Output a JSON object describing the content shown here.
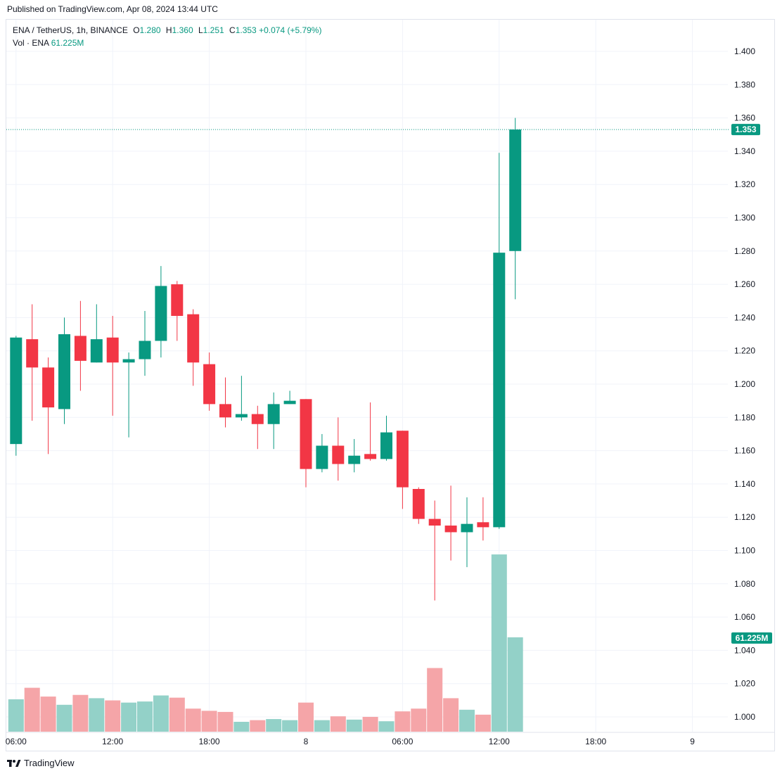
{
  "header": {
    "published": "Published on TradingView.com, Apr 08, 2024 13:44 UTC"
  },
  "legend": {
    "symbol": "ENA / TetherUS, 1h, BINANCE",
    "o_label": "O",
    "o": "1.280",
    "h_label": "H",
    "h": "1.360",
    "l_label": "L",
    "l": "1.251",
    "c_label": "C",
    "c": "1.353",
    "change": "+0.074 (+5.79%)",
    "vol_label": "Vol · ENA",
    "vol": "61.225M"
  },
  "footer": {
    "brand": "TradingView"
  },
  "colors": {
    "up": "#089981",
    "down": "#f23645",
    "up_vol": "#93d1c8",
    "down_vol": "#f5a5a8",
    "grid": "#f0f3fa",
    "text": "#131722"
  },
  "chart_data": {
    "type": "candlestick",
    "interval": "1h",
    "ylim": [
      0.99,
      1.415
    ],
    "y_ticks": [
      "1.400",
      "1.380",
      "1.360",
      "1.340",
      "1.320",
      "1.300",
      "1.280",
      "1.260",
      "1.240",
      "1.220",
      "1.200",
      "1.180",
      "1.160",
      "1.140",
      "1.120",
      "1.100",
      "1.080",
      "1.060",
      "1.040",
      "1.020",
      "1.000"
    ],
    "x_ticks": [
      {
        "label": "06:00",
        "bar": 0
      },
      {
        "label": "12:00",
        "bar": 6
      },
      {
        "label": "18:00",
        "bar": 12
      },
      {
        "label": "8",
        "bar": 18
      },
      {
        "label": "06:00",
        "bar": 24
      },
      {
        "label": "12:00",
        "bar": 30
      },
      {
        "label": "18:00",
        "bar": 36
      },
      {
        "label": "9",
        "bar": 42
      }
    ],
    "last_price": "1.353",
    "last_volume": "61.225M",
    "candles": [
      {
        "o": 1.164,
        "h": 1.229,
        "l": 1.157,
        "c": 1.228,
        "v": 0.59
      },
      {
        "o": 1.227,
        "h": 1.248,
        "l": 1.178,
        "c": 1.21,
        "v": 0.8
      },
      {
        "o": 1.21,
        "h": 1.216,
        "l": 1.158,
        "c": 1.186,
        "v": 0.64
      },
      {
        "o": 1.185,
        "h": 1.24,
        "l": 1.176,
        "c": 1.23,
        "v": 0.49
      },
      {
        "o": 1.229,
        "h": 1.25,
        "l": 1.196,
        "c": 1.214,
        "v": 0.67
      },
      {
        "o": 1.213,
        "h": 1.248,
        "l": 1.213,
        "c": 1.227,
        "v": 0.61
      },
      {
        "o": 1.228,
        "h": 1.241,
        "l": 1.181,
        "c": 1.213,
        "v": 0.57
      },
      {
        "o": 1.213,
        "h": 1.219,
        "l": 1.168,
        "c": 1.215,
        "v": 0.53
      },
      {
        "o": 1.215,
        "h": 1.244,
        "l": 1.205,
        "c": 1.226,
        "v": 0.55
      },
      {
        "o": 1.226,
        "h": 1.271,
        "l": 1.216,
        "c": 1.259,
        "v": 0.66
      },
      {
        "o": 1.26,
        "h": 1.262,
        "l": 1.226,
        "c": 1.241,
        "v": 0.62
      },
      {
        "o": 1.242,
        "h": 1.245,
        "l": 1.199,
        "c": 1.213,
        "v": 0.42
      },
      {
        "o": 1.212,
        "h": 1.219,
        "l": 1.184,
        "c": 1.188,
        "v": 0.38
      },
      {
        "o": 1.188,
        "h": 1.204,
        "l": 1.174,
        "c": 1.18,
        "v": 0.36
      },
      {
        "o": 1.18,
        "h": 1.205,
        "l": 1.178,
        "c": 1.182,
        "v": 0.18
      },
      {
        "o": 1.182,
        "h": 1.187,
        "l": 1.161,
        "c": 1.176,
        "v": 0.21
      },
      {
        "o": 1.176,
        "h": 1.195,
        "l": 1.161,
        "c": 1.188,
        "v": 0.23
      },
      {
        "o": 1.188,
        "h": 1.196,
        "l": 1.188,
        "c": 1.19,
        "v": 0.21
      },
      {
        "o": 1.191,
        "h": 1.191,
        "l": 1.138,
        "c": 1.149,
        "v": 0.53
      },
      {
        "o": 1.149,
        "h": 1.17,
        "l": 1.147,
        "c": 1.163,
        "v": 0.21
      },
      {
        "o": 1.163,
        "h": 1.18,
        "l": 1.142,
        "c": 1.152,
        "v": 0.28
      },
      {
        "o": 1.152,
        "h": 1.167,
        "l": 1.147,
        "c": 1.157,
        "v": 0.22
      },
      {
        "o": 1.158,
        "h": 1.189,
        "l": 1.154,
        "c": 1.155,
        "v": 0.27
      },
      {
        "o": 1.155,
        "h": 1.181,
        "l": 1.154,
        "c": 1.171,
        "v": 0.19
      },
      {
        "o": 1.172,
        "h": 1.172,
        "l": 1.125,
        "c": 1.138,
        "v": 0.37
      },
      {
        "o": 1.137,
        "h": 1.138,
        "l": 1.116,
        "c": 1.119,
        "v": 0.42
      },
      {
        "o": 1.119,
        "h": 1.13,
        "l": 1.07,
        "c": 1.115,
        "v": 1.16
      },
      {
        "o": 1.115,
        "h": 1.139,
        "l": 1.094,
        "c": 1.111,
        "v": 0.61
      },
      {
        "o": 1.111,
        "h": 1.132,
        "l": 1.09,
        "c": 1.116,
        "v": 0.4
      },
      {
        "o": 1.117,
        "h": 1.132,
        "l": 1.106,
        "c": 1.114,
        "v": 0.31
      },
      {
        "o": 1.114,
        "h": 1.339,
        "l": 1.113,
        "c": 1.279,
        "v": 3.23
      },
      {
        "o": 1.28,
        "h": 1.36,
        "l": 1.251,
        "c": 1.353,
        "v": 1.72
      }
    ]
  }
}
